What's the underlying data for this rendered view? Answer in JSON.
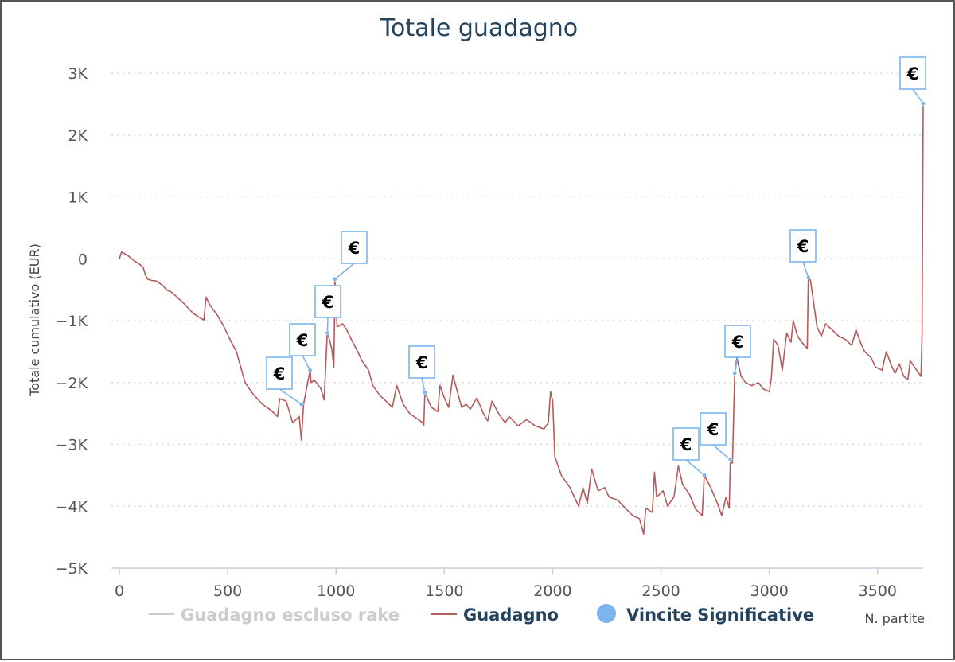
{
  "chart_data": {
    "type": "line",
    "title": "Totale guadagno",
    "xlabel": "N. partite",
    "ylabel": "Totale cumulativo (EUR)",
    "xlim": [
      0,
      3750
    ],
    "ylim": [
      -5000,
      3000
    ],
    "x_ticks": [
      {
        "value": 0,
        "label": "0"
      },
      {
        "value": 500,
        "label": "500"
      },
      {
        "value": 1000,
        "label": "1000"
      },
      {
        "value": 1500,
        "label": "1500"
      },
      {
        "value": 2000,
        "label": "2000"
      },
      {
        "value": 2500,
        "label": "2500"
      },
      {
        "value": 3000,
        "label": "3000"
      },
      {
        "value": 3500,
        "label": "3500"
      }
    ],
    "y_ticks": [
      {
        "value": 3000,
        "label": "3K"
      },
      {
        "value": 2000,
        "label": "2K"
      },
      {
        "value": 1000,
        "label": "1K"
      },
      {
        "value": 0,
        "label": "0"
      },
      {
        "value": -1000,
        "label": "−1K"
      },
      {
        "value": -2000,
        "label": "−2K"
      },
      {
        "value": -3000,
        "label": "−3K"
      },
      {
        "value": -4000,
        "label": "−4K"
      },
      {
        "value": -5000,
        "label": "−5K"
      }
    ],
    "grid": "horizontal dotted",
    "legend_position": "bottom",
    "series": [
      {
        "name": "Guadagno escluso rake",
        "color": "#cccccc",
        "hidden": true,
        "points": []
      },
      {
        "name": "Guadagno",
        "color": "#b55a5a",
        "points": [
          [
            0,
            0
          ],
          [
            10,
            110
          ],
          [
            40,
            50
          ],
          [
            60,
            -10
          ],
          [
            90,
            -80
          ],
          [
            110,
            -140
          ],
          [
            120,
            -260
          ],
          [
            130,
            -330
          ],
          [
            150,
            -350
          ],
          [
            170,
            -360
          ],
          [
            200,
            -430
          ],
          [
            220,
            -510
          ],
          [
            240,
            -540
          ],
          [
            260,
            -600
          ],
          [
            300,
            -730
          ],
          [
            340,
            -880
          ],
          [
            370,
            -950
          ],
          [
            390,
            -990
          ],
          [
            400,
            -620
          ],
          [
            420,
            -760
          ],
          [
            450,
            -900
          ],
          [
            480,
            -1080
          ],
          [
            510,
            -1300
          ],
          [
            540,
            -1500
          ],
          [
            560,
            -1750
          ],
          [
            580,
            -2000
          ],
          [
            620,
            -2200
          ],
          [
            660,
            -2350
          ],
          [
            700,
            -2450
          ],
          [
            730,
            -2550
          ],
          [
            740,
            -2260
          ],
          [
            770,
            -2300
          ],
          [
            800,
            -2650
          ],
          [
            830,
            -2550
          ],
          [
            840,
            -2930
          ],
          [
            850,
            -2350
          ],
          [
            880,
            -1800
          ],
          [
            885,
            -2000
          ],
          [
            900,
            -1960
          ],
          [
            930,
            -2100
          ],
          [
            945,
            -2280
          ],
          [
            960,
            -1180
          ],
          [
            980,
            -1450
          ],
          [
            990,
            -1750
          ],
          [
            995,
            -360
          ],
          [
            1005,
            -1100
          ],
          [
            1030,
            -1050
          ],
          [
            1050,
            -1150
          ],
          [
            1070,
            -1300
          ],
          [
            1100,
            -1500
          ],
          [
            1120,
            -1650
          ],
          [
            1150,
            -1800
          ],
          [
            1170,
            -2050
          ],
          [
            1200,
            -2200
          ],
          [
            1230,
            -2300
          ],
          [
            1260,
            -2400
          ],
          [
            1280,
            -2050
          ],
          [
            1310,
            -2350
          ],
          [
            1340,
            -2500
          ],
          [
            1360,
            -2550
          ],
          [
            1380,
            -2600
          ],
          [
            1400,
            -2650
          ],
          [
            1405,
            -2700
          ],
          [
            1410,
            -2160
          ],
          [
            1440,
            -2400
          ],
          [
            1470,
            -2470
          ],
          [
            1480,
            -2050
          ],
          [
            1500,
            -2250
          ],
          [
            1520,
            -2400
          ],
          [
            1540,
            -1880
          ],
          [
            1560,
            -2150
          ],
          [
            1580,
            -2400
          ],
          [
            1600,
            -2350
          ],
          [
            1620,
            -2430
          ],
          [
            1650,
            -2250
          ],
          [
            1680,
            -2500
          ],
          [
            1700,
            -2620
          ],
          [
            1720,
            -2300
          ],
          [
            1750,
            -2500
          ],
          [
            1780,
            -2650
          ],
          [
            1800,
            -2550
          ],
          [
            1840,
            -2700
          ],
          [
            1880,
            -2600
          ],
          [
            1920,
            -2700
          ],
          [
            1960,
            -2750
          ],
          [
            1980,
            -2650
          ],
          [
            1990,
            -2150
          ],
          [
            2000,
            -2300
          ],
          [
            2010,
            -3200
          ],
          [
            2040,
            -3500
          ],
          [
            2080,
            -3700
          ],
          [
            2120,
            -4000
          ],
          [
            2140,
            -3700
          ],
          [
            2160,
            -3950
          ],
          [
            2180,
            -3400
          ],
          [
            2210,
            -3750
          ],
          [
            2240,
            -3700
          ],
          [
            2260,
            -3850
          ],
          [
            2300,
            -3900
          ],
          [
            2340,
            -4050
          ],
          [
            2370,
            -4150
          ],
          [
            2400,
            -4200
          ],
          [
            2420,
            -4450
          ],
          [
            2430,
            -4030
          ],
          [
            2460,
            -4100
          ],
          [
            2470,
            -3450
          ],
          [
            2480,
            -3850
          ],
          [
            2510,
            -3750
          ],
          [
            2530,
            -4000
          ],
          [
            2560,
            -3850
          ],
          [
            2580,
            -3350
          ],
          [
            2600,
            -3650
          ],
          [
            2630,
            -3800
          ],
          [
            2660,
            -4050
          ],
          [
            2690,
            -4150
          ],
          [
            2700,
            -3500
          ],
          [
            2730,
            -3700
          ],
          [
            2760,
            -3950
          ],
          [
            2780,
            -4150
          ],
          [
            2800,
            -3850
          ],
          [
            2815,
            -4030
          ],
          [
            2820,
            -3300
          ],
          [
            2830,
            -3300
          ],
          [
            2840,
            -1850
          ],
          [
            2850,
            -1600
          ],
          [
            2870,
            -1900
          ],
          [
            2890,
            -2000
          ],
          [
            2920,
            -2050
          ],
          [
            2950,
            -2000
          ],
          [
            2970,
            -2100
          ],
          [
            3000,
            -2150
          ],
          [
            3010,
            -1900
          ],
          [
            3020,
            -1300
          ],
          [
            3040,
            -1400
          ],
          [
            3060,
            -1800
          ],
          [
            3080,
            -1200
          ],
          [
            3100,
            -1350
          ],
          [
            3110,
            -1000
          ],
          [
            3130,
            -1250
          ],
          [
            3150,
            -1350
          ],
          [
            3175,
            -1450
          ],
          [
            3180,
            -300
          ],
          [
            3190,
            -350
          ],
          [
            3200,
            -600
          ],
          [
            3220,
            -1100
          ],
          [
            3240,
            -1250
          ],
          [
            3260,
            -1050
          ],
          [
            3290,
            -1150
          ],
          [
            3320,
            -1250
          ],
          [
            3350,
            -1300
          ],
          [
            3380,
            -1400
          ],
          [
            3400,
            -1150
          ],
          [
            3420,
            -1350
          ],
          [
            3440,
            -1500
          ],
          [
            3470,
            -1600
          ],
          [
            3490,
            -1750
          ],
          [
            3520,
            -1800
          ],
          [
            3540,
            -1500
          ],
          [
            3560,
            -1700
          ],
          [
            3580,
            -1850
          ],
          [
            3600,
            -1700
          ],
          [
            3620,
            -1900
          ],
          [
            3640,
            -1950
          ],
          [
            3650,
            -1650
          ],
          [
            3670,
            -1750
          ],
          [
            3690,
            -1850
          ],
          [
            3700,
            -1900
          ],
          [
            3705,
            -1200
          ],
          [
            3710,
            2510
          ]
        ]
      },
      {
        "name": "Vincite Significative",
        "color": "#7cb5ec",
        "marker": "€",
        "points": [
          [
            840,
            -2350
          ],
          [
            880,
            -1800
          ],
          [
            960,
            -1200
          ],
          [
            995,
            -330
          ],
          [
            1410,
            -2160
          ],
          [
            2700,
            -3500
          ],
          [
            2820,
            -3250
          ],
          [
            2840,
            -1850
          ],
          [
            3180,
            -300
          ],
          [
            3710,
            2510
          ]
        ]
      }
    ]
  }
}
